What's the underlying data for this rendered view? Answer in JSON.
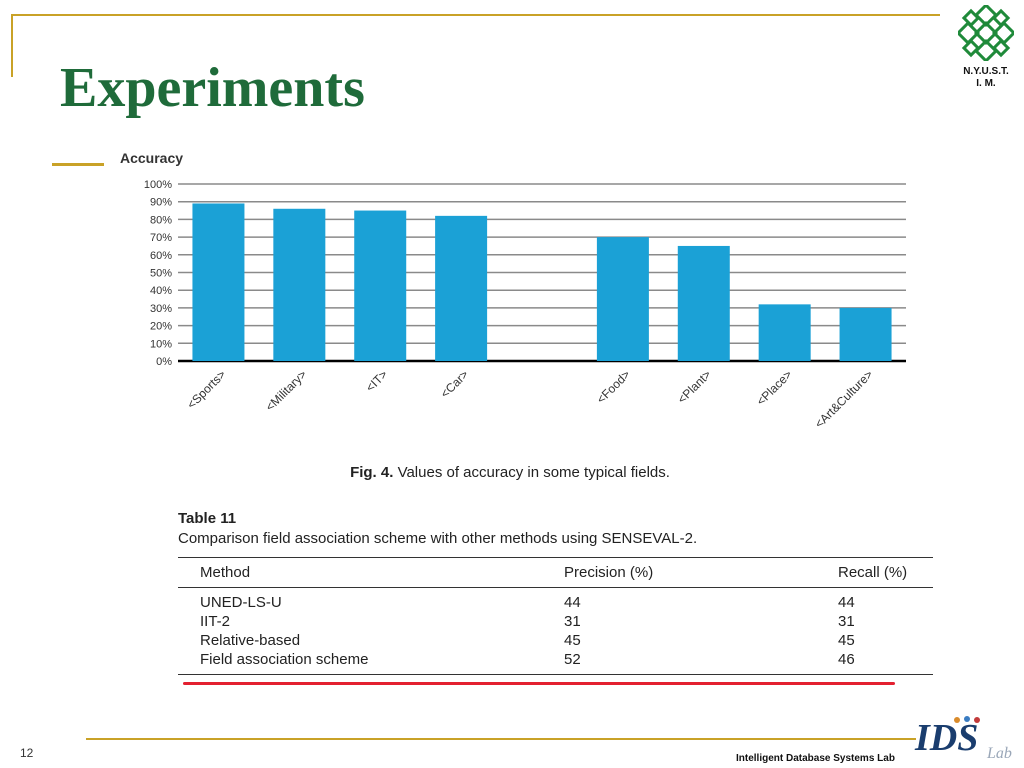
{
  "slide": {
    "title": "Experiments",
    "page_number": "12",
    "footer": "Intelligent Database Systems Lab",
    "logo_text_line1": "N.Y.U.S.T.",
    "logo_text_line2": "I. M.",
    "ids_logo_text": "IDS",
    "ids_logo_sub": "Lab",
    "colors": {
      "title": "#1f6b3a",
      "accent": "#c9a227",
      "bar": "#1ba1d6",
      "highlight": "#e32030"
    }
  },
  "figure": {
    "caption_label": "Fig. 4.",
    "caption_text": "Values of accuracy in some typical fields."
  },
  "chart_data": {
    "type": "bar",
    "title": "Accuracy",
    "categories": [
      "<Sports>",
      "<Military>",
      "<IT>",
      "<Car>",
      "",
      "<Food>",
      "<Plant>",
      "<Place>",
      "<Art&Culture>"
    ],
    "values": [
      89,
      86,
      85,
      82,
      0,
      70,
      65,
      32,
      30
    ],
    "yticks": [
      "0%",
      "10%",
      "20%",
      "30%",
      "40%",
      "50%",
      "60%",
      "70%",
      "80%",
      "90%",
      "100%"
    ],
    "ylim": [
      0,
      100
    ],
    "grid": true,
    "legend": "none"
  },
  "table": {
    "label": "Table 11",
    "caption": "Comparison field association scheme with other methods using SENSEVAL-2.",
    "headers": [
      "Method",
      "Precision (%)",
      "Recall (%)"
    ],
    "rows": [
      [
        "UNED-LS-U",
        "44",
        "44"
      ],
      [
        "IIT-2",
        "31",
        "31"
      ],
      [
        "Relative-based",
        "45",
        "45"
      ],
      [
        "Field association scheme",
        "52",
        "46"
      ]
    ]
  }
}
